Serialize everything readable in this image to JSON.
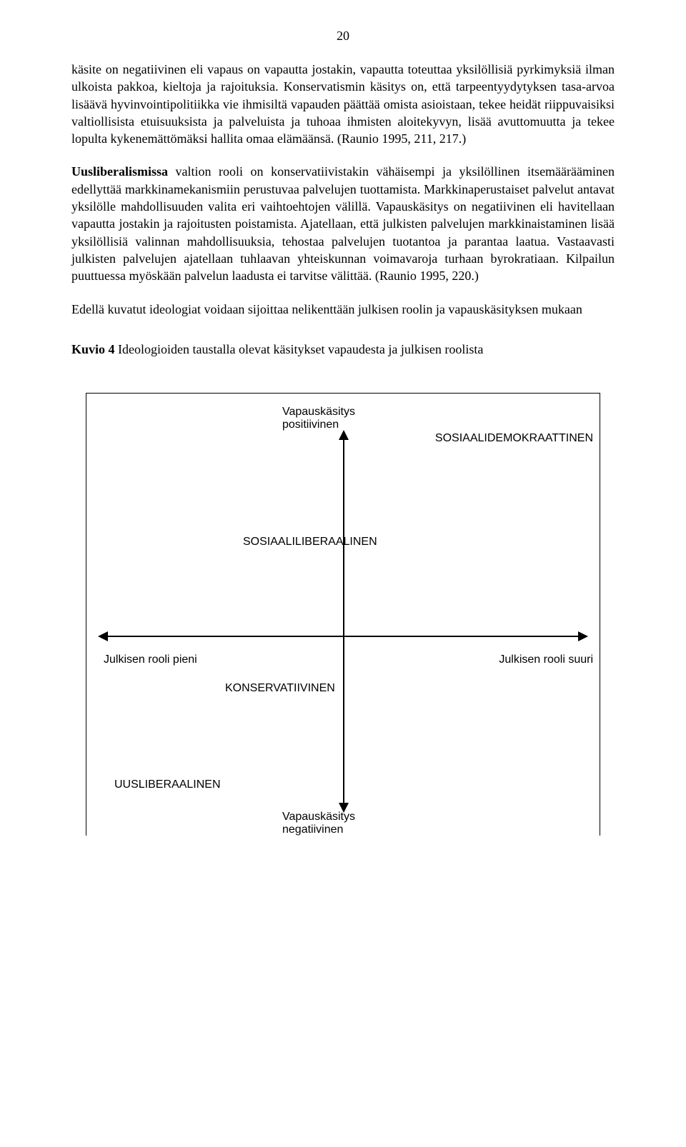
{
  "page_number": "20",
  "paragraphs": {
    "p1": "käsite on negatiivinen eli vapaus on vapautta jostakin, vapautta toteuttaa yksilöllisiä pyrkimyksiä ilman ulkoista pakkoa, kieltoja ja rajoituksia. Konservatismin käsitys on, että tarpeentyydytyksen tasa-arvoa lisäävä hyvinvointipolitiikka vie ihmisiltä vapauden päättää omista asioistaan, tekee heidät riippuvaisiksi valtiollisista etuisuuksista ja palveluista ja tuhoaa ihmisten aloitekyvyn, lisää avuttomuutta ja tekee lopulta kykenemättömäksi hallita omaa elämäänsä. (Raunio 1995, 211, 217.)",
    "p2_lead": "Uusliberalismissa",
    "p2_rest": " valtion rooli on konservatiivistakin vähäisempi ja yksilöllinen itsemäärääminen edellyttää markkinamekanismiin perustuvaa palvelujen tuottamista. Markkinaperustaiset palvelut antavat yksilölle mahdollisuuden valita eri vaihtoehtojen välillä. Vapauskäsitys on negatiivinen eli havitellaan vapautta jostakin ja rajoitusten poistamista. Ajatellaan, että julkisten palvelujen markkinaistaminen lisää yksilöllisiä valinnan mahdollisuuksia, tehostaa palvelujen tuotantoa ja parantaa laatua. Vastaavasti julkisten palvelujen ajatellaan tuhlaavan yhteiskunnan voimavaroja turhaan byrokratiaan. Kilpailun puuttuessa myöskään palvelun laadusta ei tarvitse välittää. (Raunio 1995, 220.)",
    "p3": "Edellä kuvatut ideologiat voidaan sijoittaa nelikenttään julkisen roolin ja vapauskäsityksen mukaan",
    "kuvio_lead": "Kuvio  4",
    "kuvio_rest": " Ideologioiden taustalla olevat käsitykset vapaudesta ja julkisen roolista"
  },
  "diagram": {
    "type": "flowchart",
    "box_border_color": "#000000",
    "background_color": "#ffffff",
    "axis_color": "#000000",
    "font_family": "Arial",
    "label_fontsize": 16,
    "vapaus_pos_l1": "Vapauskäsitys",
    "vapaus_pos_l2": "positiivinen",
    "sosiaalidem": "SOSIAALIDEMOKRAATTINEN",
    "sosialib": "SOSIAALILIBERAALINEN",
    "julk_pieni": "Julkisen rooli pieni",
    "julk_suuri": "Julkisen rooli suuri",
    "konserv": "KONSERVATIIVINEN",
    "uuslib": "UUSLIBERAALINEN",
    "vapaus_neg_l1": "Vapauskäsitys",
    "vapaus_neg_l2": "negatiivinen"
  }
}
